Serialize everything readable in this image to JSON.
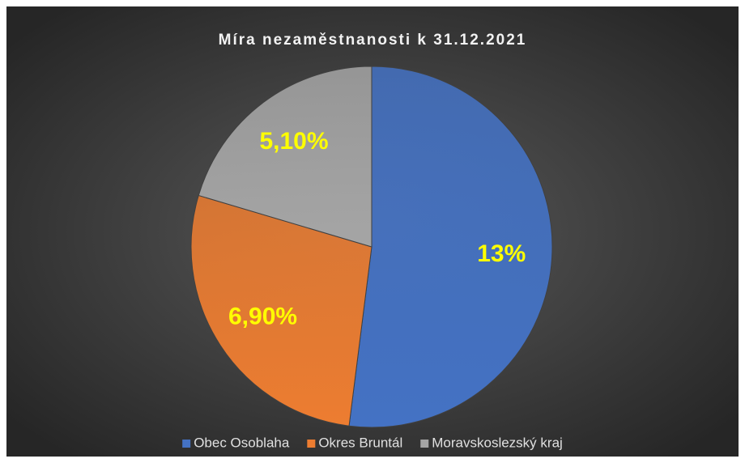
{
  "chart_data": {
    "type": "pie",
    "title": "Míra nezaměstnanosti k 31.12.2021",
    "categories": [
      "Obec Osoblaha",
      "Okres Bruntál",
      "Moravskoslezský kraj"
    ],
    "values": [
      13,
      6.9,
      5.1
    ],
    "value_labels": [
      "13%",
      "6,90%",
      "5,10%"
    ],
    "colors": [
      "#4472c4",
      "#ed7d31",
      "#a5a5a5"
    ],
    "legend": "bottom"
  }
}
